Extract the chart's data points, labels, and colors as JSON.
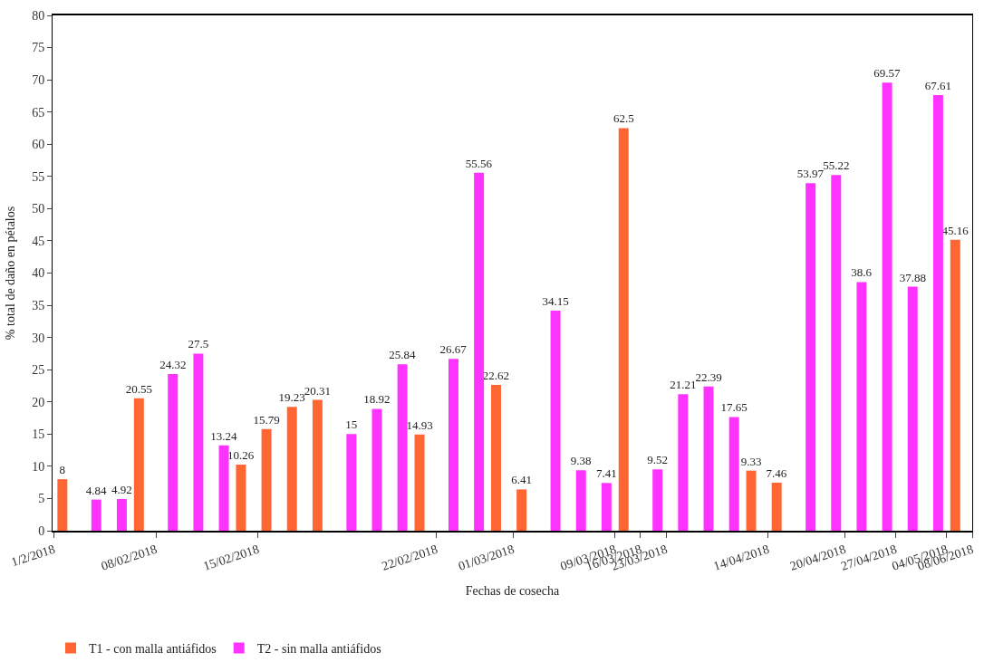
{
  "chart_data": {
    "type": "bar",
    "xlabel": "Fechas de cosecha",
    "ylabel": "% total de daño en pétalos",
    "categories": [
      "1/2/2018",
      null,
      null,
      null,
      "08/02/2018",
      null,
      null,
      null,
      "15/02/2018",
      null,
      null,
      null,
      null,
      null,
      null,
      "22/02/2018",
      null,
      null,
      "01/03/2018",
      null,
      null,
      null,
      "09/03/2018",
      "16/03/2018",
      "23/03/2018",
      null,
      null,
      null,
      "14/04/2018",
      null,
      null,
      "20/04/2018",
      null,
      "27/04/2018",
      null,
      "04/05/2018",
      "08/06/2018"
    ],
    "series": [
      {
        "name": "T1 - con malla antiáfidos",
        "color": "#ff6633",
        "values": [
          8,
          null,
          null,
          20.55,
          null,
          null,
          null,
          10.26,
          15.79,
          19.23,
          20.31,
          null,
          null,
          null,
          14.93,
          null,
          null,
          22.62,
          6.41,
          null,
          null,
          null,
          62.5,
          null,
          null,
          null,
          null,
          9.33,
          7.46,
          null,
          null,
          null,
          null,
          null,
          null,
          45.16,
          null
        ]
      },
      {
        "name": "T2 - sin malla antiáfidos",
        "color": "#ff33ff",
        "values": [
          null,
          null,
          4.84,
          4.92,
          null,
          24.32,
          27.5,
          13.24,
          null,
          null,
          null,
          null,
          15,
          18.92,
          25.84,
          null,
          26.67,
          55.56,
          null,
          null,
          34.15,
          9.38,
          7.41,
          null,
          9.52,
          21.21,
          22.39,
          17.65,
          null,
          null,
          53.97,
          55.22,
          38.6,
          69.57,
          37.88,
          67.61,
          null
        ]
      }
    ],
    "ylim": [
      0,
      80
    ],
    "yticks": [
      0,
      5,
      10,
      15,
      20,
      25,
      30,
      35,
      40,
      45,
      50,
      55,
      60,
      65,
      70,
      75,
      80
    ],
    "data_labels": true,
    "legend": "bottom left"
  }
}
